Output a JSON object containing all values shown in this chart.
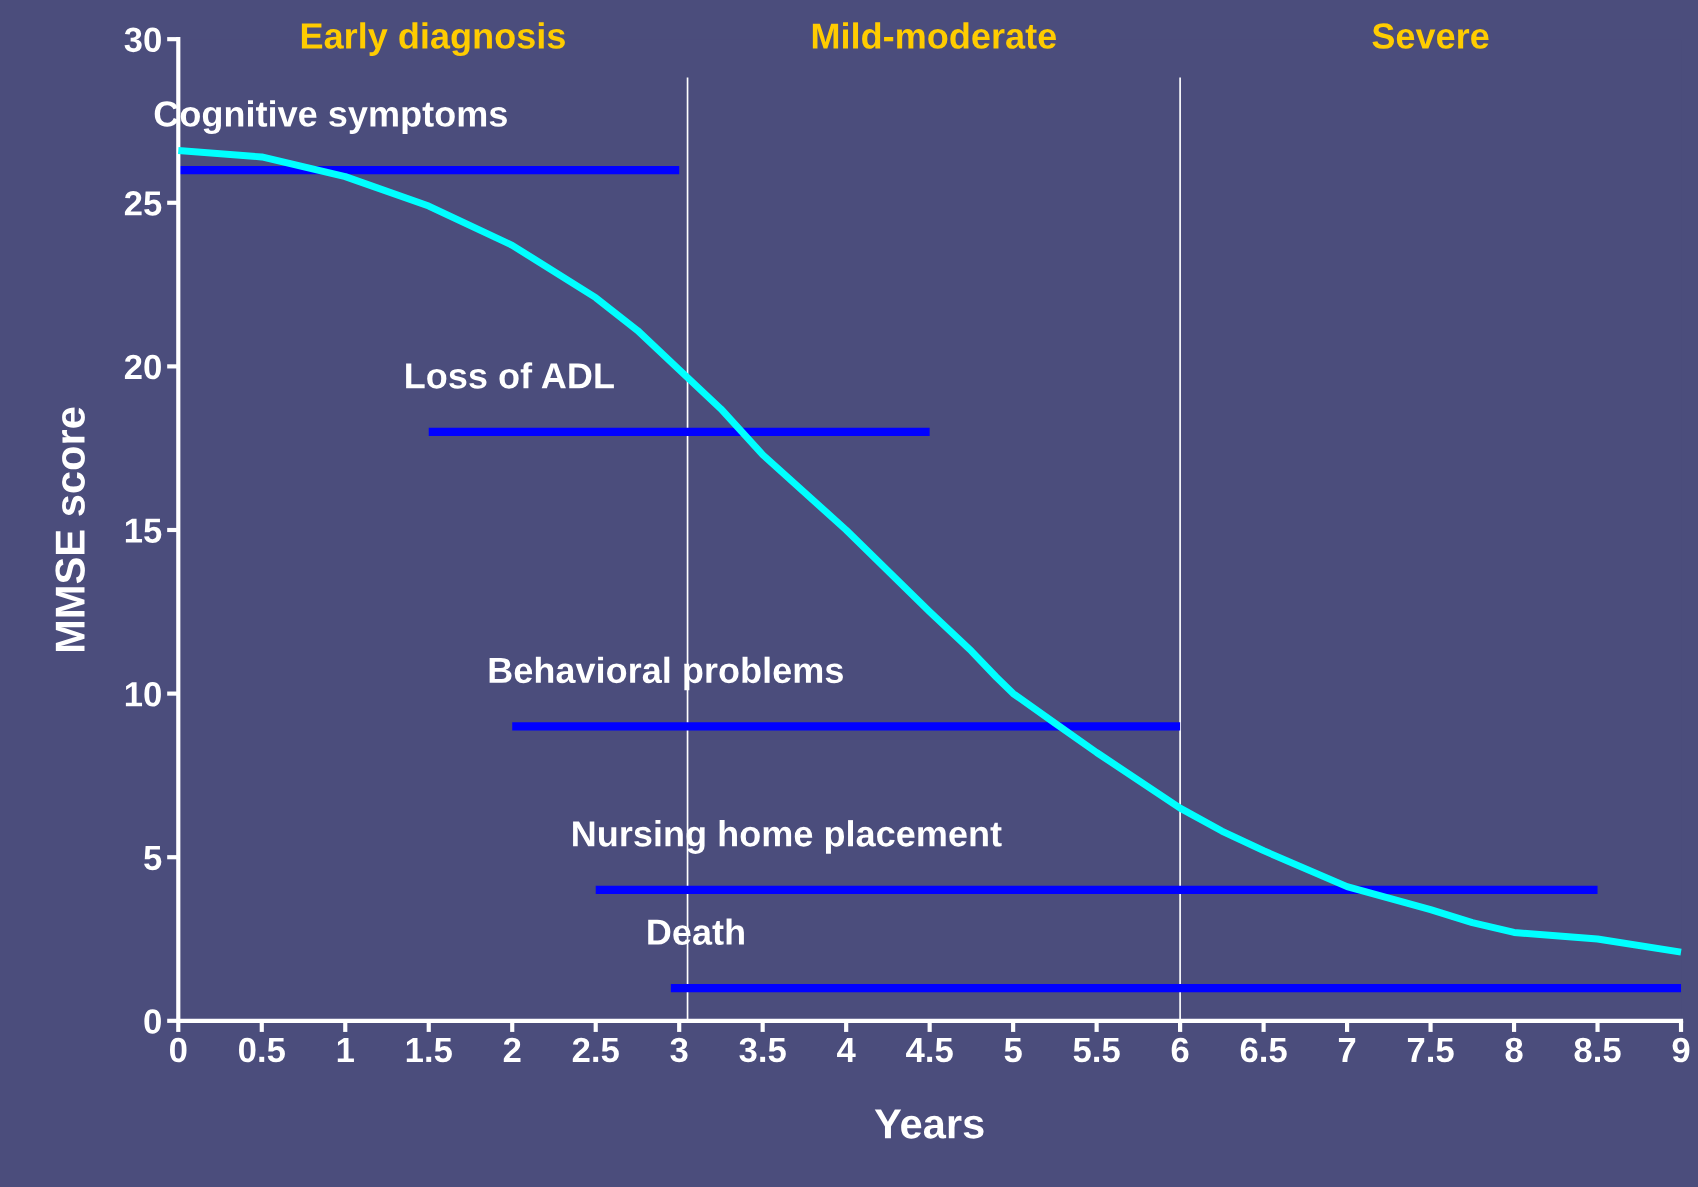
{
  "chart_data": {
    "type": "line",
    "xlabel": "Years",
    "ylabel": "MMSE score",
    "xlim": [
      0,
      9
    ],
    "ylim": [
      0,
      30
    ],
    "xticks": [
      0,
      0.5,
      1,
      1.5,
      2,
      2.5,
      3,
      3.5,
      4,
      4.5,
      5,
      5.5,
      6,
      6.5,
      7,
      7.5,
      8,
      8.5,
      9
    ],
    "yticks": [
      0,
      5,
      10,
      15,
      20,
      25,
      30
    ],
    "grid": false,
    "legend": false,
    "marker": "none",
    "line_style": "solid",
    "series": [
      {
        "color": "#00ffff",
        "x": [
          0,
          0.5,
          1,
          1.5,
          2,
          2.5,
          2.75,
          3,
          3.25,
          3.5,
          4,
          4.5,
          4.75,
          4.9,
          5,
          5.25,
          5.5,
          6,
          6.25,
          6.5,
          7,
          7.5,
          7.75,
          8,
          8.25,
          8.5,
          9
        ],
        "values": [
          26.6,
          26.4,
          25.8,
          24.9,
          23.7,
          22.1,
          21.1,
          19.9,
          18.7,
          17.3,
          15.0,
          12.5,
          11.3,
          10.5,
          10.0,
          9.1,
          8.2,
          6.5,
          5.8,
          5.2,
          4.1,
          3.4,
          3.0,
          2.7,
          2.6,
          2.5,
          2.1
        ]
      },
      {
        "name": "Cognitive symptoms",
        "color": "#0000ff",
        "x": [
          0,
          3
        ],
        "values": [
          26,
          26
        ]
      },
      {
        "name": "Loss of ADL",
        "color": "#0000ff",
        "x": [
          1.5,
          4.5
        ],
        "values": [
          18,
          18
        ]
      },
      {
        "name": "Behavioral problems",
        "color": "#0000ff",
        "x": [
          2,
          6
        ],
        "values": [
          9,
          9
        ]
      },
      {
        "name": "Nursing home placement",
        "color": "#0000ff",
        "x": [
          2.5,
          8.5
        ],
        "values": [
          4,
          4
        ]
      },
      {
        "name": "Death",
        "color": "#0000ff",
        "x": [
          2.95,
          9
        ],
        "values": [
          1,
          1
        ]
      }
    ],
    "ref_lines": [
      {
        "axis": "x",
        "value": 3.05,
        "color": "#ffffff"
      },
      {
        "axis": "x",
        "value": 6,
        "color": "#ffffff"
      }
    ],
    "annotations": [
      "Early diagnosis",
      "Mild-moderate",
      "Severe"
    ]
  }
}
